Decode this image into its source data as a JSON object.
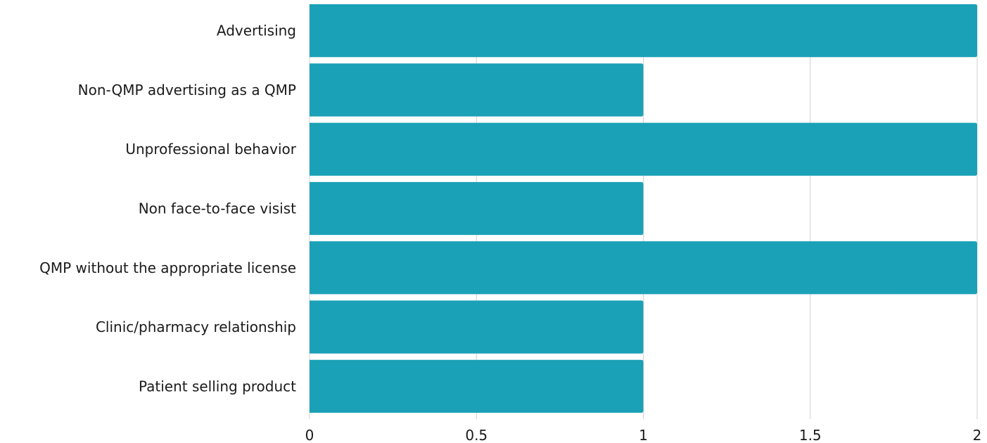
{
  "chart_data": {
    "type": "bar",
    "orientation": "horizontal",
    "categories": [
      "Advertising",
      "Non-QMP advertising as a QMP",
      "Unprofessional behavior",
      "Non face-to-face visist",
      "QMP without the appropriate license",
      "Clinic/pharmacy relationship",
      "Patient selling product"
    ],
    "values": [
      2,
      1,
      2,
      1,
      2,
      1,
      1
    ],
    "title": "",
    "xlabel": "",
    "ylabel": "",
    "xlim": [
      0,
      2
    ],
    "x_ticks": [
      "0",
      "0.5",
      "1",
      "1.5",
      "2"
    ],
    "x_tick_values": [
      0,
      0.5,
      1,
      1.5,
      2
    ],
    "grid": "vertical",
    "legend": "none",
    "colors": {
      "bar": "#1ba1b7",
      "grid": "#d0d0d0",
      "text": "#1a1a1a"
    }
  }
}
